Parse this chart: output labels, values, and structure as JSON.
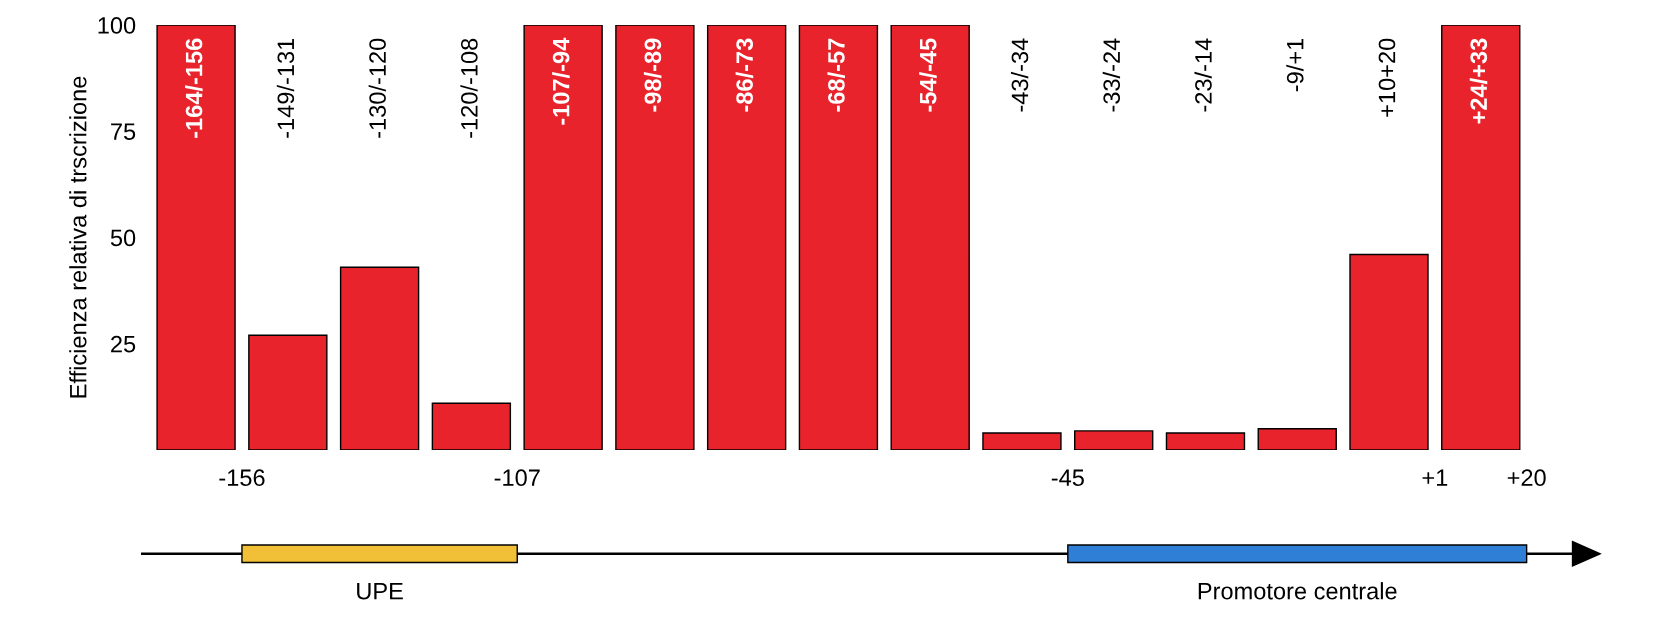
{
  "chart_data": {
    "type": "bar",
    "ylabel": "Efficienza relativa di trscrizione",
    "categories": [
      "-164/-156",
      "-149/-131",
      "-130/-120",
      "-120/-108",
      "-107/-94",
      "-98/-89",
      "-86/-73",
      "-68/-57",
      "-54/-45",
      "-43/-34",
      "-33/-24",
      "-23/-14",
      "-9/+1",
      "+10+20",
      "+24/+33"
    ],
    "values": [
      100,
      27,
      43,
      11,
      100,
      100,
      100,
      100,
      100,
      4,
      4.5,
      4,
      5,
      46,
      100
    ],
    "color": "#e8232b",
    "ylim": [
      0,
      100
    ],
    "yticks": [
      25,
      50,
      75,
      100
    ],
    "tick_labels": "y",
    "grid": false,
    "annotations": [
      "-156",
      "-107",
      "-45",
      "+1",
      "+20",
      "UPE",
      "Promotore centrale"
    ]
  }
}
